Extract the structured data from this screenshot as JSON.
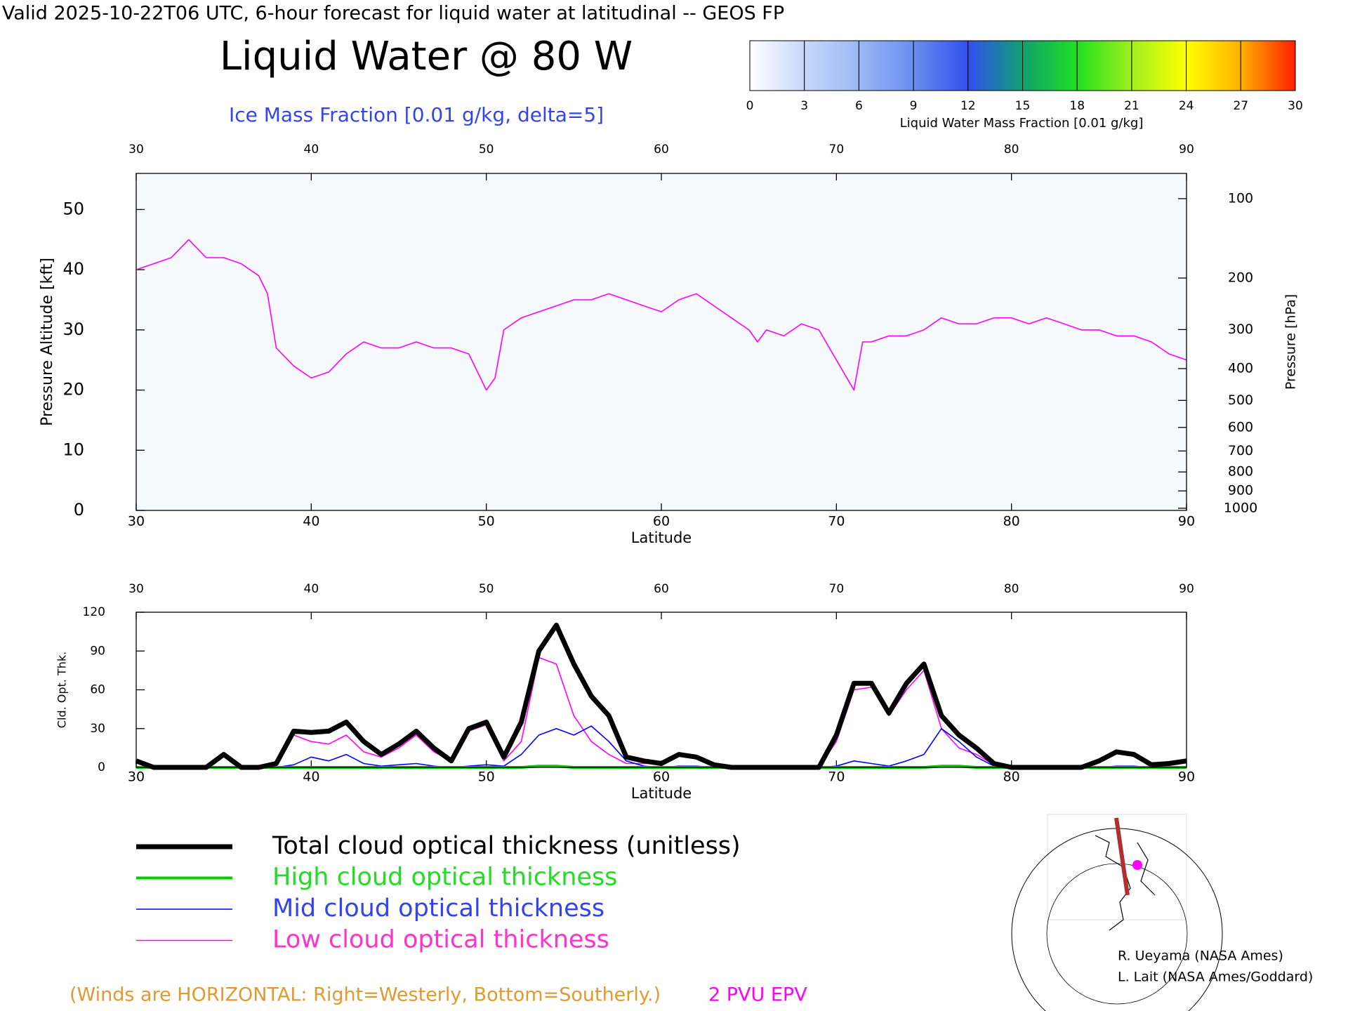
{
  "header": {
    "title": "Valid 2025-10-22T06 UTC, 6-hour forecast for liquid water at latitudinal -- GEOS FP",
    "subtitle": "Liquid Water @ 80 W",
    "contour_label": "Ice Mass Fraction [0.01 g/kg, delta=5]"
  },
  "colorbar": {
    "label": "Liquid Water Mass Fraction [0.01 g/kg]",
    "ticks": [
      0,
      3,
      6,
      9,
      12,
      15,
      18,
      21,
      24,
      27,
      30
    ],
    "colors": [
      "#ffffff",
      "#c8d8fa",
      "#9bb8f5",
      "#6a8ef0",
      "#3050ee",
      "#10a070",
      "#20e020",
      "#a0f020",
      "#ffff00",
      "#ffb000",
      "#ff2000"
    ]
  },
  "chart_data": [
    {
      "type": "line",
      "xlabel": "Latitude",
      "ylabel": "Pressure Altitude [kft]",
      "y2label": "Pressure [hPa]",
      "xlim": [
        30,
        90
      ],
      "xticks": [
        30,
        40,
        50,
        60,
        70,
        80,
        90
      ],
      "ylim": [
        0,
        56
      ],
      "yticks": [
        0,
        10,
        20,
        30,
        40,
        50
      ],
      "y2ticks": [
        100,
        200,
        300,
        400,
        500,
        600,
        700,
        800,
        900,
        1000
      ],
      "series": [
        {
          "name": "2 PVU EPV",
          "color": "#ff00ff",
          "x": [
            30,
            31,
            32,
            33,
            34,
            35,
            36,
            37,
            37.5,
            38,
            39,
            40,
            41,
            42,
            43,
            44,
            45,
            46,
            47,
            48,
            49,
            50,
            50.5,
            51,
            52,
            53,
            54,
            55,
            56,
            57,
            58,
            59,
            60,
            61,
            62,
            63,
            64,
            65,
            65.5,
            66,
            67,
            68,
            69,
            70,
            71,
            71.5,
            72,
            73,
            74,
            75,
            76,
            77,
            78,
            79,
            80,
            81,
            82,
            83,
            84,
            85,
            86,
            87,
            88,
            89,
            90
          ],
          "values": [
            40,
            41,
            42,
            45,
            42,
            42,
            41,
            39,
            36,
            27,
            24,
            22,
            23,
            26,
            28,
            27,
            27,
            28,
            27,
            27,
            26,
            20,
            22,
            30,
            32,
            33,
            34,
            35,
            35,
            36,
            35,
            34,
            33,
            35,
            36,
            34,
            32,
            30,
            28,
            30,
            29,
            31,
            30,
            25,
            20,
            28,
            28,
            29,
            29,
            30,
            32,
            31,
            31,
            32,
            32,
            31,
            32,
            31,
            30,
            30,
            29,
            29,
            28,
            26,
            25
          ]
        }
      ]
    },
    {
      "type": "line",
      "xlabel": "Latitude",
      "ylabel": "Cld. Opt. Thk.",
      "xlim": [
        30,
        90
      ],
      "xticks": [
        30,
        40,
        50,
        60,
        70,
        80,
        90
      ],
      "ylim": [
        0,
        120
      ],
      "yticks": [
        0,
        30,
        60,
        90,
        120
      ],
      "x": [
        30,
        31,
        32,
        33,
        34,
        35,
        36,
        37,
        38,
        39,
        40,
        41,
        42,
        43,
        44,
        45,
        46,
        47,
        48,
        49,
        50,
        51,
        52,
        53,
        54,
        55,
        56,
        57,
        58,
        59,
        60,
        61,
        62,
        63,
        64,
        65,
        66,
        67,
        68,
        69,
        70,
        71,
        72,
        73,
        74,
        75,
        76,
        77,
        78,
        79,
        80,
        81,
        82,
        83,
        84,
        85,
        86,
        87,
        88,
        89,
        90
      ],
      "series": [
        {
          "name": "Total cloud optical thickness (unitless)",
          "color": "#000000",
          "values": [
            5,
            0,
            0,
            0,
            0,
            10,
            0,
            0,
            3,
            28,
            27,
            28,
            35,
            20,
            10,
            18,
            28,
            15,
            5,
            30,
            35,
            8,
            35,
            90,
            110,
            80,
            55,
            40,
            8,
            5,
            3,
            10,
            8,
            2,
            0,
            0,
            0,
            0,
            0,
            0,
            25,
            65,
            65,
            42,
            65,
            80,
            40,
            25,
            15,
            3,
            0,
            0,
            0,
            0,
            0,
            5,
            12,
            10,
            2,
            3,
            5
          ]
        },
        {
          "name": "High cloud optical thickness",
          "color": "#00cc00",
          "values": [
            0,
            0,
            0,
            0,
            0,
            0,
            0,
            0,
            0,
            0,
            0,
            0,
            0,
            0,
            0,
            0,
            0,
            0,
            0,
            0,
            0,
            0,
            0,
            1,
            1,
            0,
            0,
            0,
            0,
            0,
            0,
            0,
            0,
            0,
            0,
            0,
            0,
            0,
            0,
            0,
            0,
            0,
            0,
            0,
            0,
            0,
            1,
            1,
            0,
            0,
            0,
            0,
            0,
            0,
            0,
            0,
            0,
            0,
            0,
            0,
            0
          ]
        },
        {
          "name": "Mid cloud optical thickness",
          "color": "#0000ff",
          "values": [
            0,
            0,
            0,
            0,
            0,
            0,
            0,
            0,
            0,
            2,
            8,
            5,
            10,
            3,
            1,
            2,
            3,
            1,
            0,
            1,
            2,
            1,
            10,
            25,
            30,
            25,
            32,
            20,
            5,
            1,
            0,
            1,
            1,
            0,
            0,
            0,
            0,
            0,
            0,
            0,
            1,
            5,
            3,
            1,
            5,
            10,
            30,
            20,
            8,
            1,
            0,
            0,
            0,
            0,
            0,
            0,
            1,
            1,
            0,
            0,
            0
          ]
        },
        {
          "name": "Low cloud optical thickness",
          "color": "#ff00ff",
          "values": [
            5,
            0,
            0,
            0,
            0,
            10,
            0,
            0,
            3,
            25,
            20,
            18,
            25,
            12,
            8,
            15,
            25,
            12,
            5,
            28,
            33,
            5,
            20,
            85,
            80,
            40,
            20,
            10,
            3,
            3,
            3,
            9,
            7,
            2,
            0,
            0,
            0,
            0,
            0,
            0,
            20,
            60,
            62,
            40,
            60,
            75,
            30,
            15,
            10,
            2,
            0,
            0,
            0,
            0,
            0,
            5,
            11,
            9,
            2,
            3,
            5
          ]
        }
      ]
    }
  ],
  "credits": [
    "R. Ueyama (NASA Ames)",
    "L. Lait (NASA Ames/Goddard)"
  ],
  "note": "(Winds are HORIZONTAL: Right=Westerly, Bottom=Southerly.)"
}
